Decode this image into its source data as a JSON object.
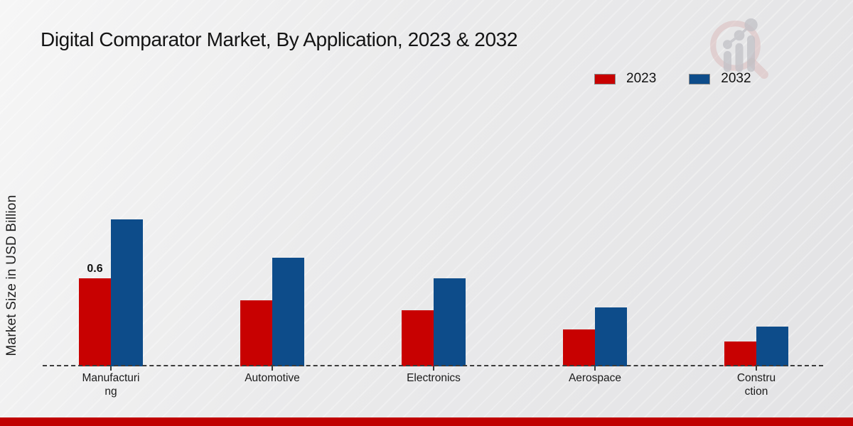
{
  "header": {
    "title": "Digital Comparator Market, By Application, 2023 & 2032"
  },
  "legend": {
    "items": [
      {
        "label": "2023",
        "color": "#c80101"
      },
      {
        "label": "2032",
        "color": "#0d4c8a"
      }
    ]
  },
  "y_axis": {
    "label": "Market Size in USD Billion"
  },
  "logo": {
    "icon": "magnifier-bar-chart-watermark-logo"
  },
  "footer": {
    "accent_color": "#c00101"
  },
  "chart_data": {
    "type": "bar",
    "title": "Digital Comparator Market, By Application, 2023 & 2032",
    "xlabel": "",
    "ylabel": "Market Size in USD Billion",
    "categories": [
      "Manufacturing",
      "Automotive",
      "Electronics",
      "Aerospace",
      "Construction"
    ],
    "category_display_lines": [
      [
        "Manufacturi",
        "ng"
      ],
      [
        "Automotive"
      ],
      [
        "Electronics"
      ],
      [
        "Aerospace"
      ],
      [
        "Constru",
        "ction"
      ]
    ],
    "series": [
      {
        "name": "2023",
        "color": "#c80101",
        "values": [
          0.6,
          0.45,
          0.38,
          0.25,
          0.17
        ]
      },
      {
        "name": "2032",
        "color": "#0d4c8a",
        "values": [
          1.0,
          0.74,
          0.6,
          0.4,
          0.27
        ]
      }
    ],
    "bar_labels": [
      {
        "series": "2023",
        "category": "Manufacturing",
        "text": "0.6"
      }
    ],
    "ylim": [
      0,
      1.1
    ],
    "grid": false,
    "axis_line_style": "dashed",
    "legend_position": "top-right"
  }
}
